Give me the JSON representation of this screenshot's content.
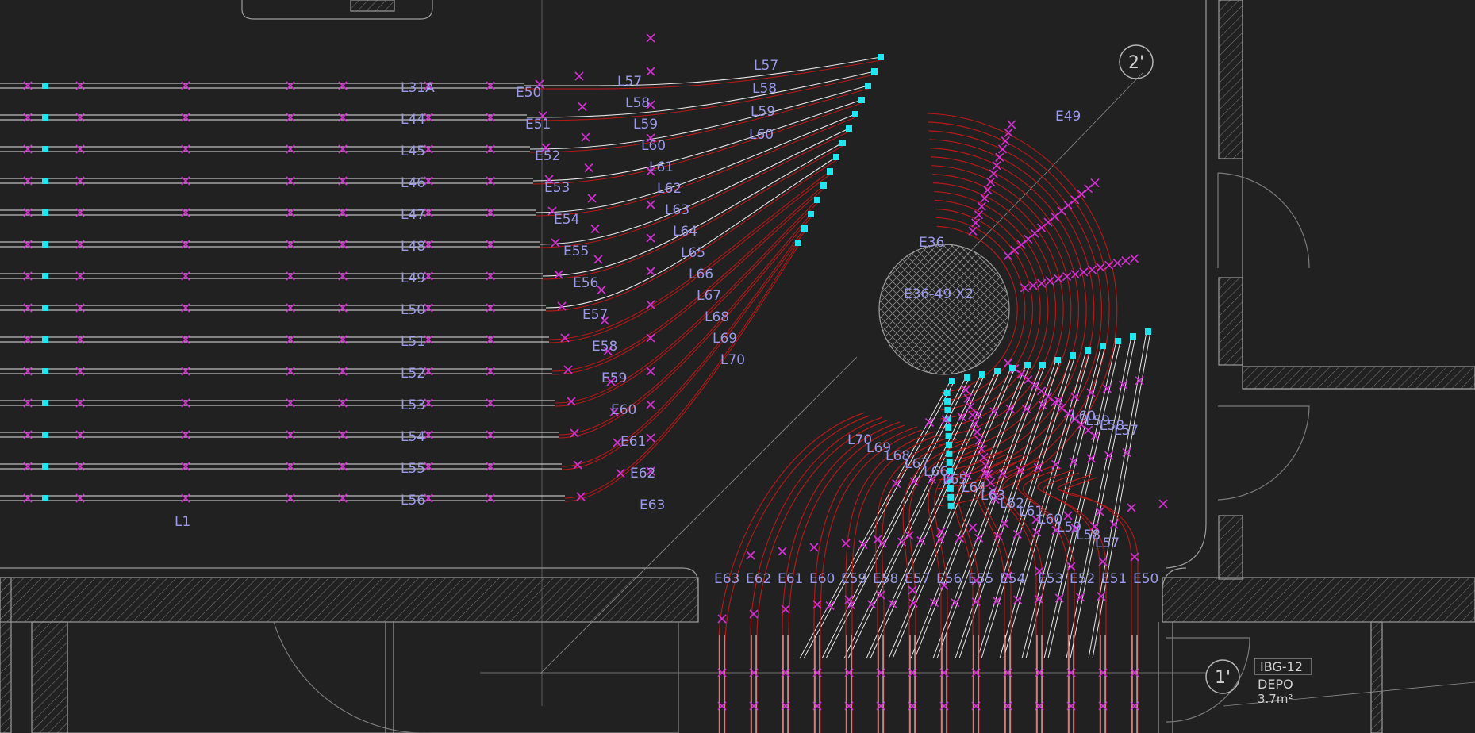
{
  "colors": {
    "background": "#212121",
    "conduit": "#e8e8e8",
    "arc": "#b11919",
    "fitting": "#d62fd6",
    "fitting_end": "#22e6ef",
    "label": "#9a9ae8",
    "wall": "#9c9c9c",
    "hatch": "#6f6f6f"
  },
  "left_labels": [
    "L31A",
    "L44",
    "L45",
    "L46",
    "L47",
    "L48",
    "L49",
    "L50",
    "L51",
    "L52",
    "L53",
    "L54",
    "L55",
    "L56"
  ],
  "mid_labels": [
    "E50",
    "E51",
    "E52",
    "E53",
    "E54",
    "E55",
    "E56",
    "E57",
    "E58",
    "E59",
    "E60",
    "E61",
    "E62",
    "E63"
  ],
  "top_fan_labels": [
    [
      "L57",
      "L57"
    ],
    [
      "L58",
      "L58"
    ],
    [
      "L59",
      "L59"
    ],
    [
      "L60",
      "L60"
    ],
    [
      "L61"
    ],
    [
      "L62"
    ],
    [
      "L63"
    ],
    [
      "L64"
    ],
    [
      "L65"
    ],
    [
      "L66"
    ],
    [
      "L67"
    ],
    [
      "L68"
    ],
    [
      "L69"
    ],
    [
      "L70"
    ]
  ],
  "bottom_upper_labels": [
    "L70",
    "L69",
    "L68",
    "L67",
    "L66",
    "L65",
    "L64",
    "L63",
    "L62",
    "L61",
    "L60",
    "L59",
    "L58",
    "L57",
    "L60",
    "L59",
    "L58",
    "L57"
  ],
  "bottom_arc_labels": [
    "E63",
    "E62",
    "E61",
    "E60",
    "E59",
    "E58",
    "E57",
    "E56",
    "E55",
    "E54",
    "E53",
    "E52",
    "E51",
    "E50"
  ],
  "circle_labels": {
    "top": "E36",
    "center": "E36-49 X2",
    "right": "E49"
  },
  "section_markers": [
    "2'",
    "1'"
  ],
  "room": {
    "code": "IBG-12",
    "name": "DEPO",
    "area": "3.7m²"
  },
  "misc_label": "L1"
}
